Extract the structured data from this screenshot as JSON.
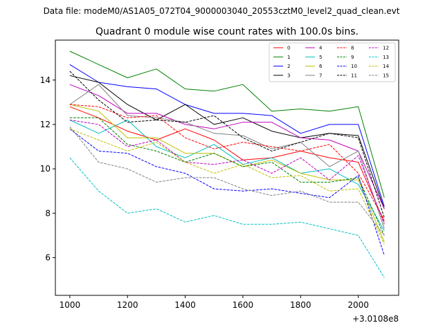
{
  "figure_title": "Data file: modeM0/AS1A05_072T04_9000003040_20553cztM0_level2_quad_clean.evt",
  "chart_data": {
    "type": "line",
    "title": "Quadrant 0 module wise count rates with 100.0s bins.",
    "xlabel": "",
    "ylabel": "",
    "x_offset_label": "+3.0108e8",
    "x": [
      1000,
      1100,
      1200,
      1300,
      1400,
      1500,
      1600,
      1700,
      1800,
      1900,
      2000,
      2090
    ],
    "xlim": [
      950,
      2140
    ],
    "ylim": [
      4.3,
      15.8
    ],
    "xticks": [
      1000,
      1200,
      1400,
      1600,
      1800,
      2000
    ],
    "yticks": [
      6,
      8,
      10,
      12,
      14
    ],
    "legend_position": "top-right",
    "series": [
      {
        "name": "0",
        "color": "#ff0000",
        "style": "solid",
        "values": [
          12.8,
          12.3,
          11.7,
          11.3,
          11.8,
          11.3,
          10.4,
          10.5,
          10.8,
          10.5,
          10.3,
          7.6
        ]
      },
      {
        "name": "1",
        "color": "#008000",
        "style": "solid",
        "values": [
          15.3,
          14.7,
          14.1,
          14.5,
          13.6,
          13.5,
          13.8,
          12.6,
          12.7,
          12.6,
          12.8,
          8.7
        ]
      },
      {
        "name": "2",
        "color": "#0000ff",
        "style": "solid",
        "values": [
          14.7,
          13.9,
          13.7,
          13.6,
          12.9,
          12.5,
          12.5,
          12.4,
          11.6,
          12.0,
          12.0,
          8.3
        ]
      },
      {
        "name": "3",
        "color": "#000000",
        "style": "solid",
        "values": [
          14.2,
          13.9,
          12.9,
          12.2,
          12.9,
          12.0,
          12.3,
          11.7,
          11.4,
          11.6,
          11.5,
          8.2
        ]
      },
      {
        "name": "4",
        "color": "#bf00bf",
        "style": "solid",
        "values": [
          13.8,
          13.3,
          12.5,
          12.5,
          12.0,
          11.8,
          12.1,
          12.1,
          11.4,
          11.3,
          10.8,
          8.2
        ]
      },
      {
        "name": "5",
        "color": "#00bfbf",
        "style": "solid",
        "values": [
          12.2,
          11.6,
          12.2,
          11.0,
          10.5,
          11.1,
          10.2,
          10.5,
          9.8,
          10.0,
          9.3,
          7.2
        ]
      },
      {
        "name": "6",
        "color": "#bfbf00",
        "style": "solid",
        "values": [
          12.9,
          12.6,
          11.4,
          11.4,
          10.7,
          10.7,
          10.1,
          10.4,
          9.8,
          9.5,
          9.5,
          6.7
        ]
      },
      {
        "name": "7",
        "color": "#808080",
        "style": "solid",
        "values": [
          12.9,
          13.8,
          12.4,
          12.3,
          12.1,
          11.6,
          11.5,
          10.9,
          11.2,
          10.1,
          10.8,
          7.3
        ]
      },
      {
        "name": "8",
        "color": "#ff0000",
        "style": "dashed",
        "values": [
          12.9,
          12.8,
          12.3,
          12.4,
          11.4,
          10.9,
          11.2,
          11.0,
          10.8,
          11.1,
          9.8,
          7.7
        ]
      },
      {
        "name": "9",
        "color": "#008000",
        "style": "dashed",
        "values": [
          12.3,
          12.3,
          11.1,
          10.8,
          10.3,
          10.7,
          10.1,
          10.3,
          9.4,
          9.4,
          9.6,
          7.0
        ]
      },
      {
        "name": "10",
        "color": "#0000ff",
        "style": "dashed",
        "values": [
          11.8,
          10.8,
          10.7,
          10.1,
          9.8,
          9.1,
          9.0,
          9.1,
          8.9,
          8.7,
          9.7,
          6.1
        ]
      },
      {
        "name": "11",
        "color": "#000000",
        "style": "dashed",
        "values": [
          14.4,
          13.1,
          12.1,
          12.2,
          12.1,
          12.4,
          11.4,
          10.8,
          11.2,
          11.6,
          11.4,
          7.8
        ]
      },
      {
        "name": "12",
        "color": "#bf00bf",
        "style": "dashed",
        "values": [
          12.2,
          12.0,
          11.0,
          11.3,
          10.3,
          10.2,
          10.4,
          9.8,
          10.5,
          9.5,
          10.6,
          7.5
        ]
      },
      {
        "name": "13",
        "color": "#00bfbf",
        "style": "dashed",
        "values": [
          10.5,
          9.0,
          8.0,
          8.2,
          7.6,
          7.9,
          7.5,
          7.5,
          7.6,
          7.3,
          7.0,
          5.1
        ]
      },
      {
        "name": "14",
        "color": "#bfbf00",
        "style": "dashed",
        "values": [
          11.8,
          11.3,
          10.8,
          11.2,
          10.3,
          9.8,
          10.2,
          9.6,
          9.7,
          9.0,
          9.1,
          6.6
        ]
      },
      {
        "name": "15",
        "color": "#808080",
        "style": "dashed",
        "values": [
          11.9,
          10.3,
          10.0,
          9.4,
          9.6,
          9.6,
          9.1,
          8.8,
          9.0,
          8.5,
          8.5,
          7.0
        ]
      }
    ]
  }
}
